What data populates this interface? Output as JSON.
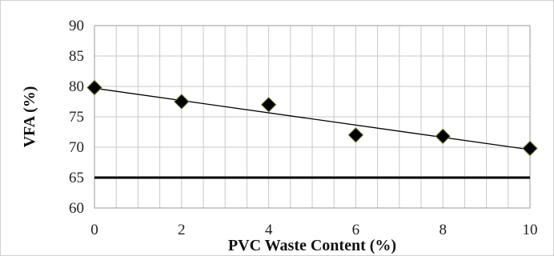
{
  "chart_data": {
    "type": "scatter",
    "xlabel": "PVC Waste Content (%)",
    "ylabel": "VFA (%)",
    "xlim": [
      0,
      10
    ],
    "ylim": [
      60,
      90
    ],
    "x_ticks": [
      "0",
      "2",
      "4",
      "6",
      "8",
      "10"
    ],
    "y_ticks": [
      "60",
      "65",
      "70",
      "75",
      "80",
      "85",
      "90"
    ],
    "grid": true,
    "series": [
      {
        "marker": "diamond",
        "x": [
          0,
          2,
          4,
          6,
          8,
          10
        ],
        "y": [
          79.8,
          77.5,
          77.0,
          72.0,
          71.8,
          69.8
        ]
      }
    ],
    "trendline": {
      "x": [
        0,
        10
      ],
      "y": [
        79.7,
        69.6
      ]
    },
    "reference_line": {
      "y": 65
    },
    "colors": {
      "marker": "#000000",
      "grid": "#c8c8c8",
      "trend": "#000000",
      "reference": "#000000"
    }
  }
}
